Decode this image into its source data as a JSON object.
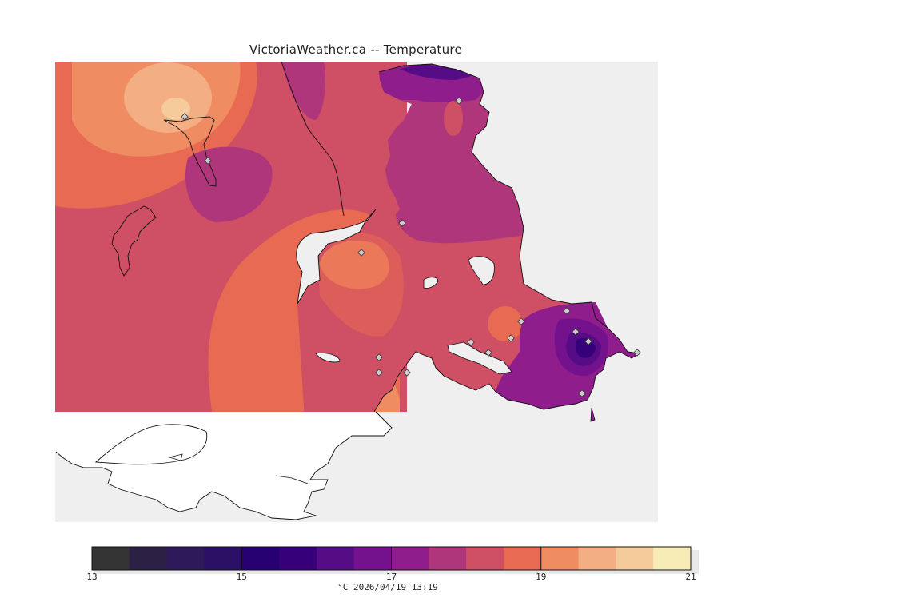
{
  "title": "VictoriaWeather.ca -- Temperature",
  "legend": {
    "min": 13,
    "max": 21,
    "step": 0.5,
    "tick_values": [
      13,
      15,
      17,
      19,
      21
    ],
    "colors": [
      "#333333",
      "#2c2045",
      "#2e1a5a",
      "#2a0f64",
      "#260070",
      "#36007a",
      "#550c85",
      "#74128e",
      "#8f1d8c",
      "#b0367b",
      "#cf4f64",
      "#e86a52",
      "#f08c62",
      "#f3ae83",
      "#f5cb9c",
      "#f8ecb6"
    ],
    "caption": "°C  2026/04/19 13:19"
  },
  "map": {
    "background_color": "#efefef",
    "stations_count": 17
  }
}
